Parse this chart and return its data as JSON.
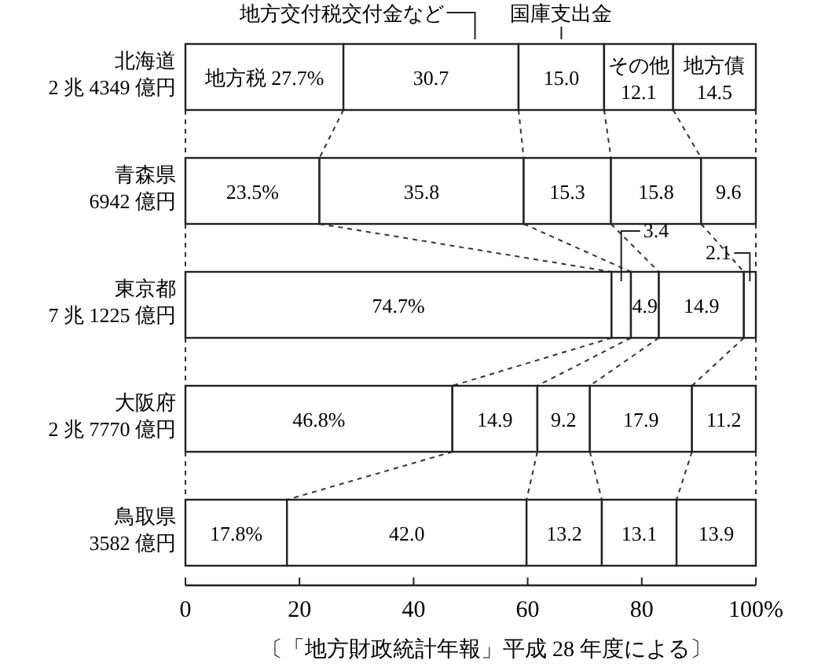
{
  "chart_data": {
    "type": "bar",
    "orientation": "horizontal",
    "stacked": true,
    "categories": [
      "北海道\n2 兆 4349 億円",
      "青森県\n6942 億円",
      "東京都\n7 兆 1225 億円",
      "大阪府\n2 兆 7770 億円",
      "鳥取県\n3582 億円"
    ],
    "series": [
      {
        "name": "地方税",
        "color": "#ffffff",
        "values": [
          27.7,
          23.5,
          74.7,
          46.8,
          17.8
        ],
        "value_labels": [
          "27.7%",
          "23.5%",
          "74.7%",
          "46.8%",
          "17.8%"
        ]
      },
      {
        "name": "地方交付税交付金など",
        "color": "#ffffff",
        "values": [
          30.7,
          35.8,
          3.4,
          14.9,
          42.0
        ],
        "value_labels": [
          "30.7",
          "35.8",
          "3.4",
          "14.9",
          "42.0"
        ]
      },
      {
        "name": "国庫支出金",
        "color": "#ffffff",
        "values": [
          15.0,
          15.3,
          4.9,
          9.2,
          13.2
        ],
        "value_labels": [
          "15.0",
          "15.3",
          "4.9",
          "9.2",
          "13.2"
        ]
      },
      {
        "name": "その他",
        "color": "#ffffff",
        "values": [
          12.1,
          15.8,
          14.9,
          17.9,
          13.1
        ],
        "value_labels": [
          "12.1",
          "15.8",
          "14.9",
          "17.9",
          "13.1"
        ]
      },
      {
        "name": "地方債",
        "color": "#ffffff",
        "values": [
          14.5,
          9.6,
          2.1,
          11.2,
          13.9
        ],
        "value_labels": [
          "14.5",
          "9.6",
          "2.1",
          "11.2",
          "13.9"
        ]
      }
    ],
    "xlim": [
      0,
      100
    ],
    "xticks": [
      0,
      20,
      40,
      60,
      80,
      {
        "value": 100,
        "label": "100%"
      }
    ],
    "annotations": [
      "〔「地方財政統計年報」平成 28 年度による〕"
    ]
  }
}
